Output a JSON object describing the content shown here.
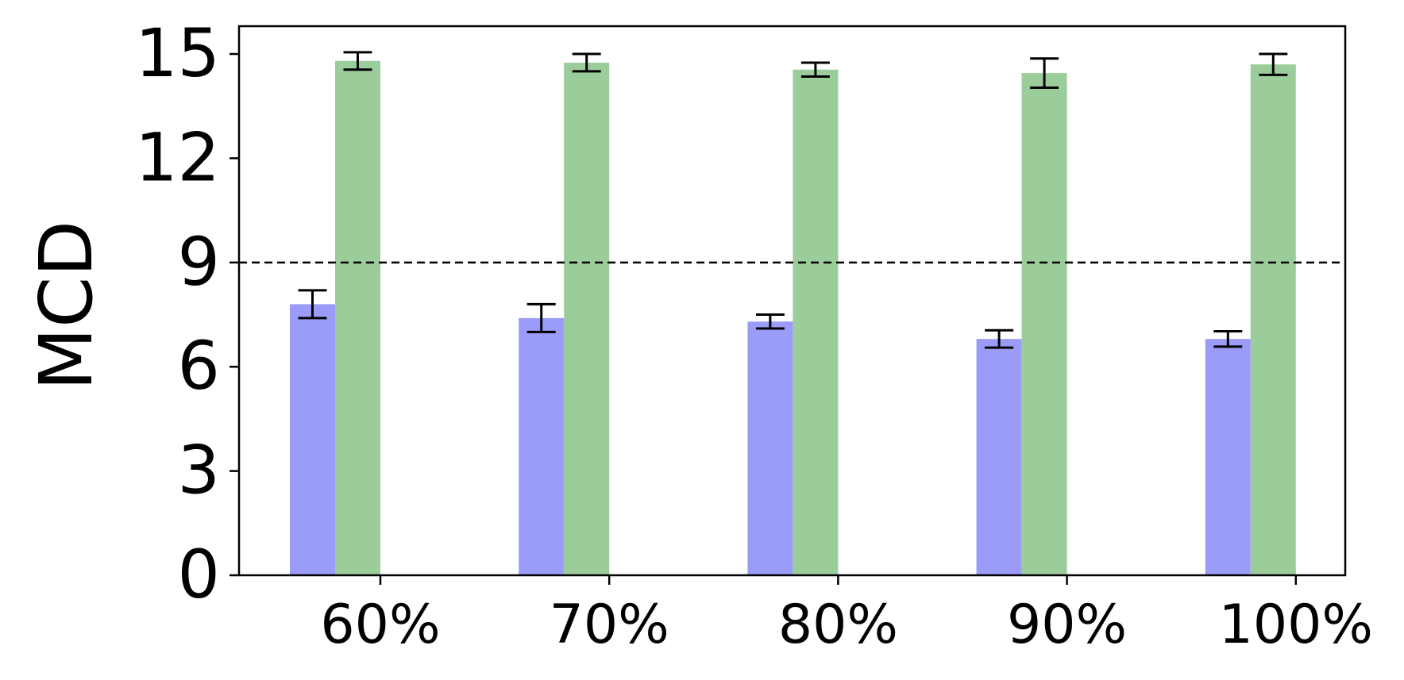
{
  "chart_data": {
    "type": "bar",
    "title": "",
    "xlabel": "",
    "ylabel": "MCD",
    "categories": [
      "60%",
      "70%",
      "80%",
      "90%",
      "100%"
    ],
    "ylim": [
      0,
      15.8
    ],
    "yticks": [
      "0",
      "3",
      "6",
      "9",
      "12",
      "15"
    ],
    "yticks_values": [
      0,
      3,
      6,
      9,
      12,
      15
    ],
    "grid": false,
    "reference_line": {
      "y": 9,
      "style": "dashed",
      "color": "#000000"
    },
    "series": [
      {
        "color": "#9b9bfa",
        "values": [
          7.8,
          7.4,
          7.3,
          6.8,
          6.8
        ],
        "errors": [
          0.4,
          0.4,
          0.2,
          0.25,
          0.22
        ]
      },
      {
        "color": "#9bcd9b",
        "values": [
          14.8,
          14.75,
          14.55,
          14.45,
          14.7
        ],
        "errors": [
          0.25,
          0.25,
          0.2,
          0.42,
          0.3
        ]
      }
    ]
  }
}
